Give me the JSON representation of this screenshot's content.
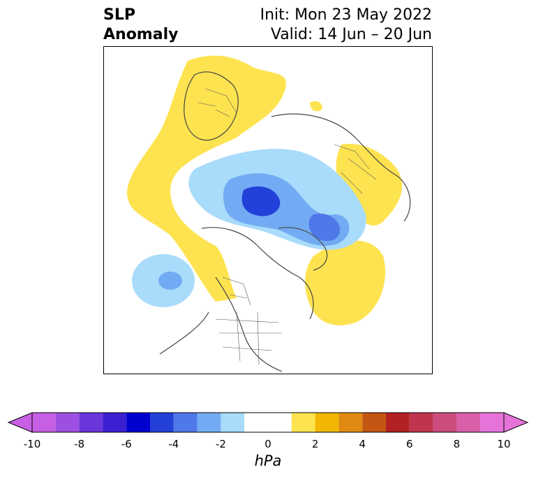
{
  "header": {
    "title_line1": "SLP",
    "title_line2": "Anomaly",
    "init_label": "Init: Mon 23 May 2022",
    "valid_label": "Valid: 14 Jun – 20 Jun"
  },
  "map": {
    "projection": "polar-stereographic-north",
    "field": "SLP Anomaly",
    "features": [
      "land-contours",
      "country-borders",
      "us-state-borders"
    ]
  },
  "colorbar": {
    "units": "hPa",
    "ticks": [
      "-10",
      "-8",
      "-6",
      "-4",
      "-2",
      "0",
      "2",
      "4",
      "6",
      "8",
      "10"
    ],
    "levels": [
      -10,
      -9,
      -8,
      -7,
      -6,
      -5,
      -4,
      -3,
      -2,
      -1,
      1,
      2,
      3,
      4,
      5,
      6,
      7,
      8,
      9,
      10
    ],
    "colors": [
      "#c65fe3",
      "#9c4fe0",
      "#6a35db",
      "#3b1fd0",
      "#0000cf",
      "#2340d8",
      "#4f78e8",
      "#72abf3",
      "#a9dbfb",
      "#ffffff",
      "#fee350",
      "#f1b702",
      "#e08a12",
      "#c45613",
      "#b22222",
      "#c03450",
      "#cc4d7d",
      "#d95fa8",
      "#e573d9"
    ],
    "extend": "both"
  }
}
